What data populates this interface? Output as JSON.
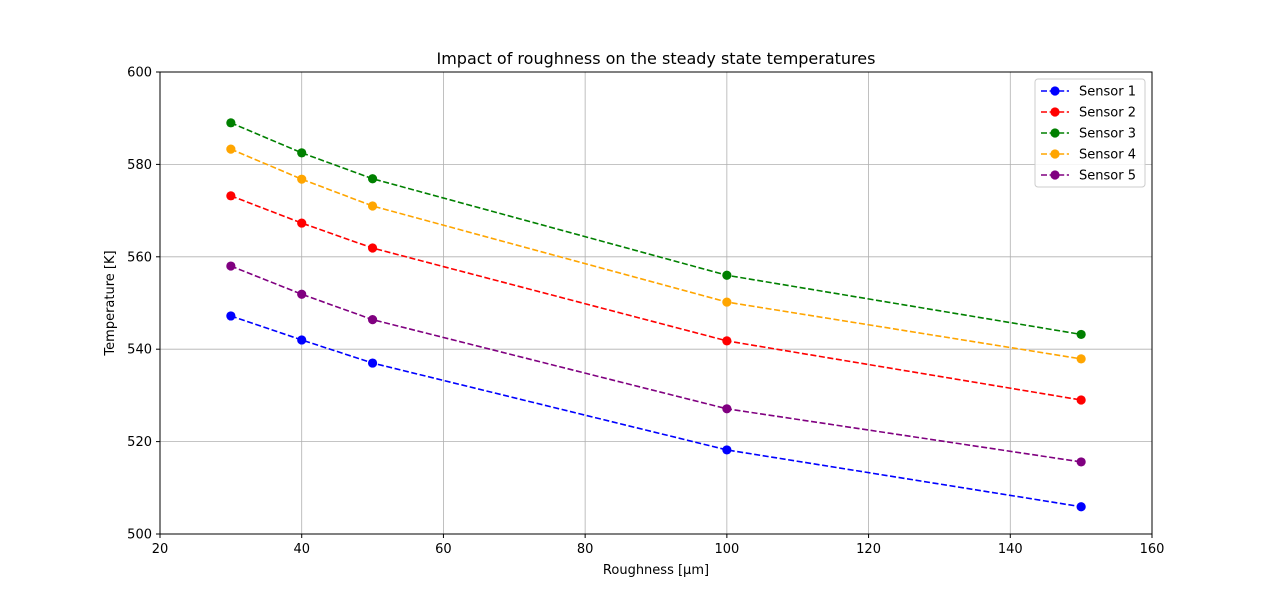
{
  "chart_data": {
    "type": "line",
    "title": "Impact of roughness on the steady state temperatures",
    "xlabel": "Roughness [μm]",
    "ylabel": "Temperature [K]",
    "xlim": [
      20,
      160
    ],
    "ylim": [
      500,
      600
    ],
    "xticks": [
      20,
      40,
      60,
      80,
      100,
      120,
      140,
      160
    ],
    "yticks": [
      500,
      520,
      540,
      560,
      580,
      600
    ],
    "grid": true,
    "legend_position": "top-right",
    "line_style": "dashed",
    "marker": "circle",
    "x": [
      30,
      40,
      50,
      100,
      150
    ],
    "series": [
      {
        "name": "Sensor 1",
        "color": "#0000ff",
        "values": [
          547.2,
          542.0,
          537.0,
          518.2,
          505.9
        ]
      },
      {
        "name": "Sensor 2",
        "color": "#ff0000",
        "values": [
          573.2,
          567.3,
          561.9,
          541.8,
          529.0
        ]
      },
      {
        "name": "Sensor 3",
        "color": "#008000",
        "values": [
          589.0,
          582.5,
          576.9,
          556.0,
          543.2
        ]
      },
      {
        "name": "Sensor 4",
        "color": "#ffa500",
        "values": [
          583.3,
          576.8,
          571.0,
          550.2,
          537.9
        ]
      },
      {
        "name": "Sensor 5",
        "color": "#800080",
        "values": [
          558.0,
          551.9,
          546.4,
          527.1,
          515.6
        ]
      }
    ]
  }
}
